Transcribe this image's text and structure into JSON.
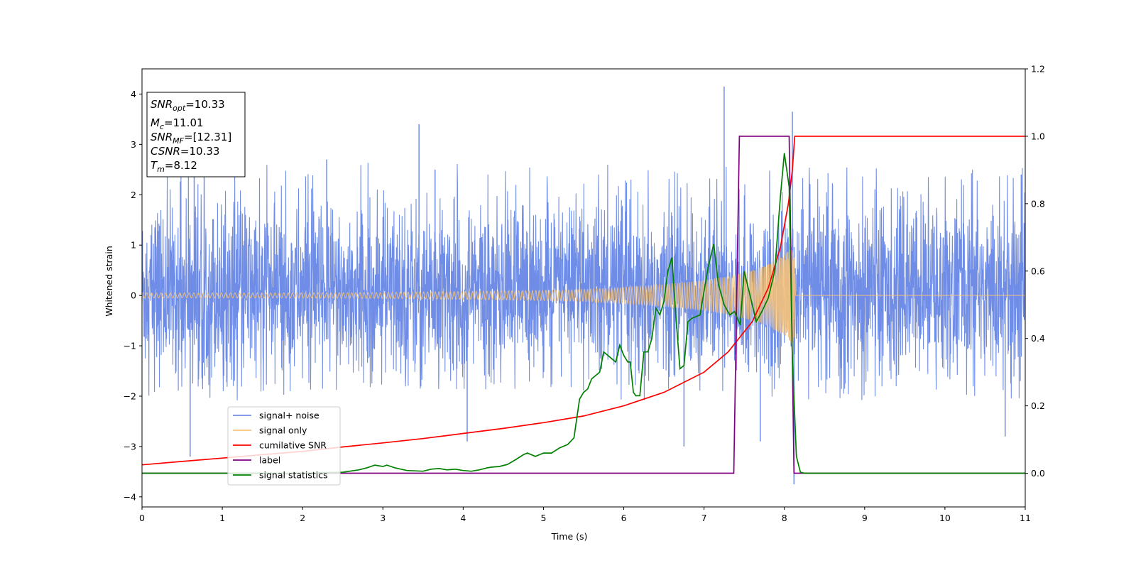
{
  "chart_data": {
    "type": "line",
    "xlabel": "Time (s)",
    "ylabel": "Whitened strain",
    "xlim": [
      0,
      11
    ],
    "ylim": [
      -4.2,
      4.5
    ],
    "y2lim": [
      -0.1,
      1.2
    ],
    "x_ticks": [
      "0",
      "1",
      "2",
      "3",
      "4",
      "5",
      "6",
      "7",
      "8",
      "9",
      "10",
      "11"
    ],
    "y_ticks": [
      "4",
      "3",
      "2",
      "1",
      "0",
      "−1",
      "−2",
      "−3",
      "−4"
    ],
    "y2_ticks": [
      "1.2",
      "1.0",
      "0.8",
      "0.6",
      "0.4",
      "0.2",
      "0.0"
    ],
    "grid": false,
    "legend": {
      "placement": "lower-left",
      "entries": [
        {
          "label": "signal+ noise",
          "color": "#6f8de6"
        },
        {
          "label": "signal only",
          "color": "#f5c27a"
        },
        {
          "label": "cumilative SNR",
          "color": "#ff0000"
        },
        {
          "label": "label",
          "color": "#800080"
        },
        {
          "label": "signal statistics",
          "color": "#008000"
        }
      ]
    },
    "annotation_box": {
      "placement": "top-left",
      "lines": [
        {
          "base": "SNR",
          "sub": "opt",
          "value": "=10.33"
        },
        {
          "base": "M",
          "sub": "c",
          "value": "=11.01"
        },
        {
          "base": "SNR",
          "sub": "MF",
          "value": "=[12.31]"
        },
        {
          "base": "CSNR",
          "sub": "",
          "value": "=10.33"
        },
        {
          "base": "T",
          "sub": "m",
          "value": "=8.12"
        }
      ]
    },
    "series": [
      {
        "name": "signal+ noise",
        "axis": "left",
        "color": "#6f8de6",
        "style": "dense noise band",
        "typical_band": [
          -1.9,
          2.4
        ],
        "spikes": [
          [
            0.6,
            -3.2
          ],
          [
            0.65,
            2.5
          ],
          [
            2.3,
            2.7
          ],
          [
            3.45,
            3.4
          ],
          [
            3.65,
            2.5
          ],
          [
            4.05,
            -2.9
          ],
          [
            7.25,
            4.15
          ],
          [
            8.1,
            3.65
          ],
          [
            8.12,
            -3.75
          ],
          [
            7.7,
            -2.9
          ],
          [
            6.75,
            -3.0
          ],
          [
            10.75,
            -2.8
          ],
          [
            10.95,
            2.4
          ]
        ]
      },
      {
        "name": "signal only",
        "axis": "left",
        "color": "#f5c27a",
        "style": "chirp",
        "envelope": [
          [
            0,
            0.05
          ],
          [
            1,
            0.05
          ],
          [
            2,
            0.05
          ],
          [
            3,
            0.06
          ],
          [
            4,
            0.08
          ],
          [
            5,
            0.1
          ],
          [
            5.5,
            0.12
          ],
          [
            6,
            0.16
          ],
          [
            6.5,
            0.22
          ],
          [
            7,
            0.3
          ],
          [
            7.3,
            0.38
          ],
          [
            7.6,
            0.5
          ],
          [
            7.8,
            0.62
          ],
          [
            8.0,
            0.8
          ],
          [
            8.12,
            1.0
          ],
          [
            8.14,
            0.0
          ],
          [
            11,
            0.0
          ]
        ]
      },
      {
        "name": "cumilative SNR",
        "axis": "right",
        "color": "#ff0000",
        "x": [
          0,
          0.5,
          1,
          1.5,
          2,
          2.5,
          3,
          3.5,
          4,
          4.5,
          5,
          5.5,
          6,
          6.5,
          7,
          7.3,
          7.6,
          7.8,
          7.95,
          8.05,
          8.1,
          8.12,
          8.13,
          11
        ],
        "y": [
          0.025,
          0.035,
          0.045,
          0.055,
          0.065,
          0.078,
          0.09,
          0.103,
          0.118,
          0.133,
          0.15,
          0.17,
          0.2,
          0.24,
          0.3,
          0.36,
          0.45,
          0.55,
          0.67,
          0.8,
          0.9,
          0.97,
          1.0,
          1.0
        ]
      },
      {
        "name": "label",
        "axis": "right",
        "color": "#800080",
        "x": [
          0,
          7.37,
          7.44,
          8.06,
          8.12,
          11
        ],
        "y": [
          0,
          0,
          1,
          1,
          0,
          0
        ]
      },
      {
        "name": "signal statistics",
        "axis": "right",
        "color": "#008000",
        "x": [
          0,
          0.3,
          1.0,
          2.0,
          2.5,
          2.7,
          2.8,
          2.9,
          3.0,
          3.05,
          3.15,
          3.3,
          3.5,
          3.6,
          3.7,
          3.8,
          3.9,
          4.0,
          4.1,
          4.2,
          4.3,
          4.35,
          4.45,
          4.55,
          4.65,
          4.75,
          4.8,
          4.9,
          5.0,
          5.1,
          5.2,
          5.3,
          5.38,
          5.45,
          5.5,
          5.55,
          5.6,
          5.65,
          5.7,
          5.75,
          5.85,
          5.9,
          5.95,
          6.0,
          6.05,
          6.08,
          6.12,
          6.15,
          6.2,
          6.25,
          6.3,
          6.35,
          6.4,
          6.45,
          6.5,
          6.55,
          6.6,
          6.65,
          6.7,
          6.75,
          6.8,
          6.85,
          6.95,
          7.05,
          7.12,
          7.18,
          7.25,
          7.32,
          7.38,
          7.45,
          7.5,
          7.55,
          7.6,
          7.65,
          7.72,
          7.8,
          7.88,
          7.95,
          8.0,
          8.06,
          8.1,
          8.15,
          8.2,
          8.25,
          8.5,
          11
        ],
        "y": [
          0,
          0,
          0,
          0,
          0.003,
          0.01,
          0.016,
          0.024,
          0.02,
          0.024,
          0.016,
          0.008,
          0.006,
          0.012,
          0.014,
          0.01,
          0.012,
          0.008,
          0.006,
          0.01,
          0.016,
          0.018,
          0.02,
          0.026,
          0.04,
          0.055,
          0.06,
          0.05,
          0.06,
          0.06,
          0.075,
          0.085,
          0.105,
          0.22,
          0.24,
          0.25,
          0.28,
          0.29,
          0.3,
          0.36,
          0.34,
          0.33,
          0.38,
          0.35,
          0.33,
          0.33,
          0.24,
          0.23,
          0.23,
          0.36,
          0.36,
          0.4,
          0.49,
          0.47,
          0.51,
          0.6,
          0.64,
          0.46,
          0.31,
          0.32,
          0.45,
          0.46,
          0.47,
          0.61,
          0.68,
          0.56,
          0.5,
          0.47,
          0.48,
          0.44,
          0.6,
          0.55,
          0.5,
          0.45,
          0.48,
          0.52,
          0.6,
          0.82,
          0.95,
          0.85,
          0.34,
          0.05,
          0.003,
          0,
          0,
          0
        ]
      }
    ]
  }
}
